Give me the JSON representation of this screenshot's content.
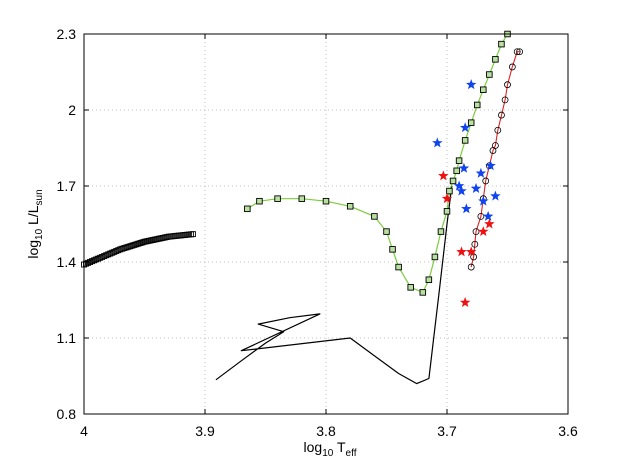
{
  "chart_data": {
    "type": "scatter",
    "title": "",
    "xlabel": {
      "prefix": "log",
      "prefix_sub": "10",
      "main": " T",
      "sub": "eff"
    },
    "ylabel": {
      "prefix": "log",
      "prefix_sub": "10",
      "main": " L/L",
      "sub": "sun"
    },
    "xlim": [
      4.0,
      3.6
    ],
    "ylim": [
      0.8,
      2.3
    ],
    "x_reversed": true,
    "grid": true,
    "xticks": [
      4,
      3.9,
      3.8,
      3.7,
      3.6
    ],
    "xtick_labels": [
      "4",
      "3.9",
      "3.8",
      "3.7",
      "3.6"
    ],
    "yticks": [
      0.8,
      1.1,
      1.4,
      1.7,
      2,
      2.3
    ],
    "ytick_labels": [
      "0.8",
      "1.1",
      "1.4",
      "1.7",
      "2",
      "2.3"
    ],
    "colors": {
      "track_line": "#000000",
      "green_line": "#7ccc3c",
      "green_fill": "#b8e0a0",
      "red_line": "#dd2222",
      "red_star": "#ee1111",
      "blue_star": "#1144ee",
      "grid": "#b0b0b0"
    },
    "series": [
      {
        "name": "black-track",
        "style": "line",
        "x": [
          3.891,
          3.87,
          3.85,
          3.835,
          3.856,
          3.83,
          3.805,
          3.87,
          3.78,
          3.74,
          3.725,
          3.715,
          3.706,
          3.7,
          3.696
        ],
        "y": [
          0.935,
          1.01,
          1.08,
          1.125,
          1.155,
          1.18,
          1.195,
          1.05,
          1.1,
          0.96,
          0.92,
          0.94,
          1.3,
          1.55,
          1.7
        ]
      },
      {
        "name": "black-square-cluster-left",
        "style": "squares",
        "x": [
          4.0,
          3.99,
          3.98,
          3.97,
          3.96,
          3.95,
          3.94,
          3.93,
          3.92,
          3.91
        ],
        "y": [
          1.39,
          1.41,
          1.43,
          1.45,
          1.465,
          1.48,
          1.49,
          1.5,
          1.505,
          1.51
        ]
      },
      {
        "name": "green-square-track",
        "style": "line+squares",
        "x": [
          3.865,
          3.855,
          3.84,
          3.82,
          3.8,
          3.78,
          3.76,
          3.75,
          3.745,
          3.74,
          3.73,
          3.72,
          3.715,
          3.71,
          3.705,
          3.7,
          3.698,
          3.695,
          3.692,
          3.69,
          3.685,
          3.68,
          3.675,
          3.67,
          3.665,
          3.66,
          3.655,
          3.65
        ],
        "y": [
          1.61,
          1.64,
          1.65,
          1.65,
          1.64,
          1.62,
          1.58,
          1.52,
          1.45,
          1.38,
          1.3,
          1.28,
          1.33,
          1.42,
          1.52,
          1.6,
          1.68,
          1.72,
          1.76,
          1.8,
          1.88,
          1.95,
          2.02,
          2.08,
          2.14,
          2.2,
          2.26,
          2.3
        ]
      },
      {
        "name": "red-circle-track",
        "style": "line+circles",
        "x": [
          3.68,
          3.678,
          3.677,
          3.676,
          3.672,
          3.67,
          3.668,
          3.665,
          3.662,
          3.66,
          3.658,
          3.655,
          3.652,
          3.65,
          3.646,
          3.642,
          3.64
        ],
        "y": [
          1.38,
          1.42,
          1.47,
          1.52,
          1.58,
          1.65,
          1.72,
          1.78,
          1.84,
          1.86,
          1.92,
          1.98,
          2.04,
          2.1,
          2.17,
          2.23,
          2.23
        ]
      },
      {
        "name": "red-stars",
        "style": "stars",
        "x": [
          3.703,
          3.7,
          3.688,
          3.68,
          3.685,
          3.67,
          3.665
        ],
        "y": [
          1.74,
          1.65,
          1.44,
          1.44,
          1.24,
          1.52,
          1.55
        ]
      },
      {
        "name": "blue-stars",
        "style": "stars",
        "x": [
          3.708,
          3.68,
          3.685,
          3.69,
          3.688,
          3.684,
          3.676,
          3.67,
          3.666,
          3.664,
          3.66,
          3.672,
          3.686
        ],
        "y": [
          1.87,
          2.1,
          1.93,
          1.7,
          1.68,
          1.61,
          1.69,
          1.64,
          1.58,
          1.78,
          1.66,
          1.75,
          1.77
        ]
      }
    ]
  }
}
